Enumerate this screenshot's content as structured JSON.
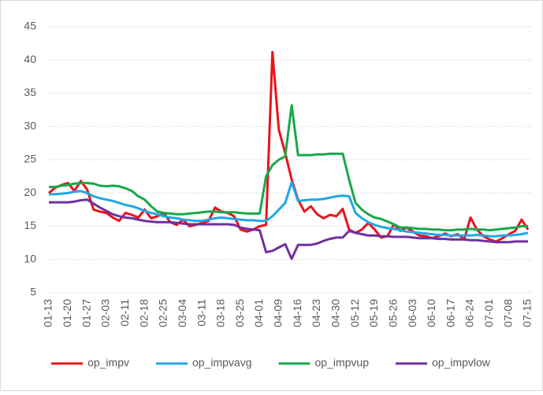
{
  "chart_data": {
    "type": "line",
    "categories": [
      "01-13",
      null,
      null,
      "01-20",
      null,
      null,
      "01-27",
      null,
      null,
      "02-03",
      null,
      null,
      "02-11",
      null,
      null,
      "02-18",
      null,
      null,
      "02-25",
      null,
      null,
      "03-04",
      null,
      null,
      "03-11",
      null,
      null,
      "03-18",
      null,
      null,
      "03-25",
      null,
      null,
      "04-01",
      null,
      null,
      "04-09",
      null,
      null,
      "04-16",
      null,
      null,
      "04-23",
      null,
      null,
      "04-30",
      null,
      null,
      "05-12",
      null,
      null,
      "05-19",
      null,
      null,
      "05-26",
      null,
      null,
      "06-03",
      null,
      null,
      "06-10",
      null,
      null,
      "06-17",
      null,
      null,
      "06-24",
      null,
      null,
      "07-01",
      null,
      null,
      "07-08",
      null,
      null,
      "07-15"
    ],
    "series": [
      {
        "name": "op_impv",
        "color": "#e8141b",
        "values": [
          20,
          20.8,
          21.2,
          21.5,
          20.3,
          21.8,
          20.5,
          17.5,
          17.2,
          17,
          16.3,
          15.8,
          17,
          16.7,
          16.3,
          17.5,
          16.2,
          16.5,
          17,
          15.6,
          15.2,
          16,
          15,
          15.2,
          15.5,
          15.8,
          17.8,
          17.2,
          17,
          16.5,
          14.5,
          14.2,
          14.5,
          15,
          15.2,
          41.2,
          29.5,
          26,
          22,
          19,
          17.2,
          18,
          16.8,
          16.2,
          16.7,
          16.5,
          17.6,
          14.5,
          14,
          14.5,
          15.5,
          14.5,
          13.3,
          13.5,
          15.3,
          14.3,
          14.8,
          14.2,
          13.6,
          13.5,
          13.2,
          13.5,
          13.9,
          13.5,
          13.8,
          13,
          16.3,
          14.5,
          13.5,
          13,
          12.7,
          13.2,
          13.8,
          14.3,
          16,
          14.5
        ]
      },
      {
        "name": "op_impvavg",
        "color": "#1ea8e6",
        "values": [
          19.8,
          19.8,
          19.9,
          20,
          20.2,
          20.3,
          20,
          19.5,
          19.2,
          19,
          18.8,
          18.5,
          18.2,
          18,
          17.7,
          17.3,
          17,
          16.8,
          16.5,
          16.3,
          16.2,
          16,
          15.9,
          15.8,
          15.8,
          16,
          16.2,
          16.3,
          16.2,
          16.1,
          16,
          15.9,
          15.9,
          15.8,
          15.8,
          16.5,
          17.5,
          18.5,
          21.6,
          18.8,
          18.9,
          19,
          19,
          19.1,
          19.3,
          19.5,
          19.6,
          19.5,
          17,
          16.2,
          15.6,
          15.2,
          14.9,
          14.7,
          14.6,
          14.4,
          14.2,
          14.1,
          14,
          13.9,
          13.8,
          13.7,
          13.7,
          13.6,
          13.6,
          13.6,
          13.6,
          13.7,
          13.6,
          13.5,
          13.5,
          13.6,
          13.6,
          13.7,
          13.8,
          14
        ]
      },
      {
        "name": "op_impvup",
        "color": "#17a84b",
        "values": [
          20.9,
          20.9,
          21.1,
          21.2,
          21.4,
          21.5,
          21.5,
          21.4,
          21.1,
          21,
          21.1,
          21,
          20.7,
          20.3,
          19.5,
          19,
          18,
          17.2,
          17,
          16.9,
          16.8,
          16.8,
          16.9,
          17,
          17.1,
          17.2,
          17.2,
          17.1,
          17.1,
          17.1,
          17,
          16.9,
          16.9,
          16.9,
          22.5,
          24.2,
          25,
          25.5,
          33.2,
          25.7,
          25.7,
          25.7,
          25.8,
          25.8,
          25.9,
          25.9,
          25.9,
          22,
          18.5,
          17.5,
          16.8,
          16.3,
          16.1,
          15.7,
          15.3,
          14.8,
          14.8,
          14.7,
          14.6,
          14.6,
          14.5,
          14.5,
          14.4,
          14.4,
          14.5,
          14.5,
          14.6,
          14.5,
          14.5,
          14.4,
          14.5,
          14.6,
          14.7,
          14.8,
          15,
          15
        ]
      },
      {
        "name": "op_impvlow",
        "color": "#7030a0",
        "values": [
          18.6,
          18.6,
          18.6,
          18.6,
          18.7,
          18.9,
          19,
          18.4,
          17.8,
          17.3,
          16.8,
          16.5,
          16.3,
          16.2,
          16,
          15.8,
          15.7,
          15.6,
          15.6,
          15.6,
          15.5,
          15.4,
          15.3,
          15.3,
          15.3,
          15.3,
          15.3,
          15.3,
          15.3,
          15.2,
          14.8,
          14.6,
          14.5,
          14.4,
          11.1,
          11.3,
          11.8,
          12.3,
          10.1,
          12.2,
          12.2,
          12.2,
          12.4,
          12.8,
          13.1,
          13.3,
          13.3,
          14.3,
          14,
          13.8,
          13.6,
          13.6,
          13.5,
          13.5,
          13.4,
          13.4,
          13.4,
          13.3,
          13.2,
          13.2,
          13.2,
          13.1,
          13.1,
          13,
          13,
          13,
          12.9,
          12.9,
          12.8,
          12.7,
          12.6,
          12.6,
          12.6,
          12.7,
          12.7,
          12.7
        ]
      }
    ],
    "ylim": [
      5,
      45
    ],
    "yticks": [
      5,
      10,
      15,
      20,
      25,
      30,
      35,
      40,
      45
    ],
    "grid": true,
    "legend": "bottom"
  }
}
